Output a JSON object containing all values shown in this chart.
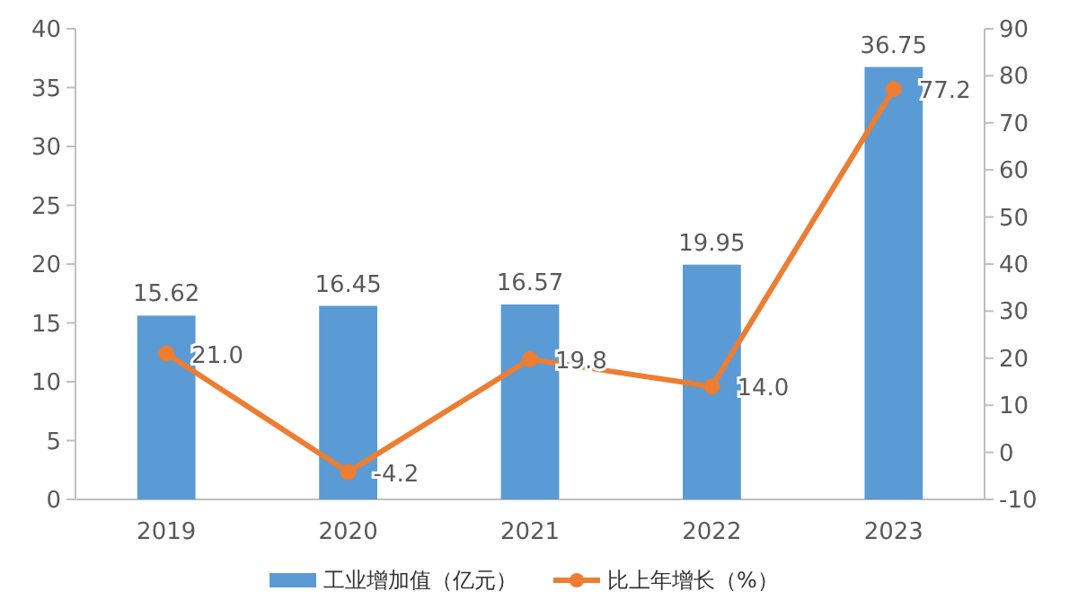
{
  "chart_data": {
    "type": "bar",
    "categories": [
      "2019",
      "2020",
      "2021",
      "2022",
      "2023"
    ],
    "series": [
      {
        "name": "工业增加值（亿元）",
        "color": "#5b9bd5",
        "values": [
          15.62,
          16.45,
          16.57,
          19.95,
          36.75
        ]
      },
      {
        "name": "比上年增长（%）",
        "type": "line",
        "axis": "y2",
        "color": "#ed7d31",
        "marker": "circle",
        "values": [
          21.0,
          -4.2,
          19.8,
          14.0,
          77.2
        ],
        "value_labels": [
          "21.0",
          "-4.2",
          "19.8",
          "14.0",
          "77.2"
        ]
      }
    ],
    "ylim": [
      0,
      40
    ],
    "yticks": [
      0,
      5,
      10,
      15,
      20,
      25,
      30,
      35,
      40
    ],
    "y2lim": [
      -10,
      90
    ],
    "y2ticks": [
      -10,
      0,
      10,
      20,
      30,
      40,
      50,
      60,
      70,
      80,
      90
    ],
    "data_labels": true,
    "legend": "bottom",
    "grid": false
  }
}
